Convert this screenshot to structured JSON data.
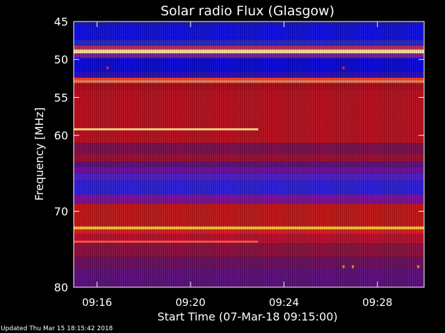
{
  "chart_data": {
    "type": "heatmap",
    "title": "Solar radio Flux (Glasgow)",
    "xlabel": "Start Time (07-Mar-18 09:15:00)",
    "ylabel": "Frequency [MHz]",
    "xlim_minutes": [
      15.0,
      30.0
    ],
    "ylim": [
      45,
      80
    ],
    "x_ticks": [
      {
        "label": "09:16",
        "value": 16
      },
      {
        "label": "09:20",
        "value": 20
      },
      {
        "label": "09:24",
        "value": 24
      },
      {
        "label": "09:28",
        "value": 28
      }
    ],
    "y_ticks": [
      {
        "label": "45",
        "value": 45
      },
      {
        "label": "50",
        "value": 50
      },
      {
        "label": "55",
        "value": 55
      },
      {
        "label": "60",
        "value": 60
      },
      {
        "label": "70",
        "value": 70
      },
      {
        "label": "80",
        "value": 80
      }
    ],
    "bands": [
      {
        "from": 45.0,
        "to": 45.4,
        "color": "#1a1aa0"
      },
      {
        "from": 45.4,
        "to": 47.4,
        "color": "#1010e8"
      },
      {
        "from": 47.4,
        "to": 48.2,
        "color": "#2828d0"
      },
      {
        "from": 48.2,
        "to": 48.7,
        "color": "#c03060"
      },
      {
        "from": 48.7,
        "to": 49.2,
        "color": "#fff0a0"
      },
      {
        "from": 49.2,
        "to": 49.8,
        "color": "#8020a0"
      },
      {
        "from": 49.8,
        "to": 51.6,
        "color": "#0a0ae0"
      },
      {
        "from": 51.6,
        "to": 52.4,
        "color": "#2a10c0"
      },
      {
        "from": 52.4,
        "to": 52.7,
        "color": "#ff4020"
      },
      {
        "from": 52.7,
        "to": 53.1,
        "color": "#ff8060"
      },
      {
        "from": 53.1,
        "to": 54.0,
        "color": "#b01020"
      },
      {
        "from": 54.0,
        "to": 61.0,
        "color": "#c01020"
      },
      {
        "from": 61.0,
        "to": 62.5,
        "color": "#801050"
      },
      {
        "from": 62.5,
        "to": 63.5,
        "color": "#a01030"
      },
      {
        "from": 63.5,
        "to": 64.2,
        "color": "#601080"
      },
      {
        "from": 64.2,
        "to": 65.0,
        "color": "#7010a0"
      },
      {
        "from": 65.0,
        "to": 66.0,
        "color": "#5020d0"
      },
      {
        "from": 66.0,
        "to": 67.8,
        "color": "#3020e0"
      },
      {
        "from": 67.8,
        "to": 69.0,
        "color": "#8010a0"
      },
      {
        "from": 69.0,
        "to": 72.0,
        "color": "#c81818"
      },
      {
        "from": 72.0,
        "to": 72.4,
        "color": "#ffd040"
      },
      {
        "from": 72.4,
        "to": 73.0,
        "color": "#e02020"
      },
      {
        "from": 73.0,
        "to": 74.2,
        "color": "#c01030"
      },
      {
        "from": 74.2,
        "to": 76.0,
        "color": "#901040"
      },
      {
        "from": 76.0,
        "to": 77.5,
        "color": "#701060"
      },
      {
        "from": 77.5,
        "to": 80.0,
        "color": "#601080"
      }
    ],
    "features": [
      {
        "t_start": 15.0,
        "t_end": 22.9,
        "freq": 59.2,
        "color": "#ffd080"
      },
      {
        "t_start": 15.0,
        "t_end": 22.9,
        "freq": 74.0,
        "color": "#ff5040"
      }
    ],
    "spots": [
      {
        "t": 16.45,
        "freq": 51.1,
        "color": "#ff2020"
      },
      {
        "t": 26.55,
        "freq": 51.1,
        "color": "#ff2020"
      },
      {
        "t": 26.55,
        "freq": 77.3,
        "color": "#ff8020"
      },
      {
        "t": 26.95,
        "freq": 77.3,
        "color": "#ff8020"
      },
      {
        "t": 29.75,
        "freq": 77.3,
        "color": "#ff8020"
      }
    ]
  },
  "footer": {
    "updated": "Updated Thu Mar 15 18:15:42 2018"
  }
}
